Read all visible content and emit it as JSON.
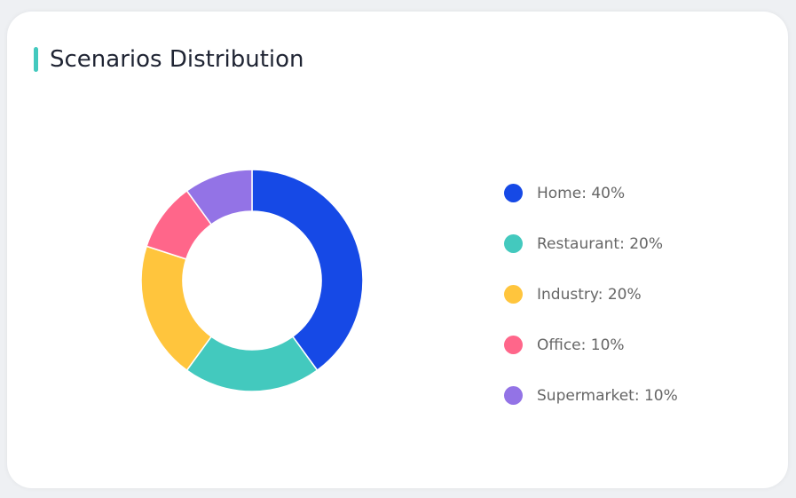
{
  "title": "Scenarios Distribution",
  "accent_color": "#43C9BE",
  "chart_data": {
    "type": "pie",
    "donut": true,
    "title": "Scenarios Distribution",
    "legend_position": "right",
    "slices": [
      {
        "name": "Home",
        "value": 40,
        "color": "#1649E6",
        "label": "Home: 40%"
      },
      {
        "name": "Restaurant",
        "value": 20,
        "color": "#43C9BE",
        "label": "Restaurant: 20%"
      },
      {
        "name": "Industry",
        "value": 20,
        "color": "#FFC53D",
        "label": "Industry: 20%"
      },
      {
        "name": "Office",
        "value": 10,
        "color": "#FF668A",
        "label": "Office: 10%"
      },
      {
        "name": "Supermarket",
        "value": 10,
        "color": "#9373E6",
        "label": "Supermarket: 10%"
      }
    ]
  }
}
